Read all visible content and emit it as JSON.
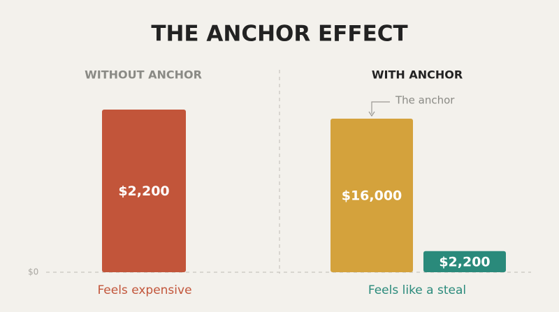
{
  "title": "THE ANCHOR EFFECT",
  "chart_data": [
    {
      "type": "bar",
      "title": "WITHOUT ANCHOR",
      "caption": "Feels expensive",
      "categories": [
        null
      ],
      "values": [
        2200
      ],
      "value_labels": [
        "$2,200"
      ],
      "colors": [
        "#c2553a"
      ],
      "ylim": [
        0,
        2200
      ],
      "yticks": [
        {
          "value": 0,
          "label": "$0"
        }
      ]
    },
    {
      "type": "bar",
      "title": "WITH ANCHOR",
      "caption": "Feels like a steal",
      "annotation": "The anchor",
      "categories": [
        null,
        null
      ],
      "values": [
        16000,
        2200
      ],
      "value_labels": [
        "$16,000",
        "$2,200"
      ],
      "colors": [
        "#d4a23c",
        "#2a8a7b"
      ],
      "ylim": [
        0,
        16000
      ]
    }
  ]
}
